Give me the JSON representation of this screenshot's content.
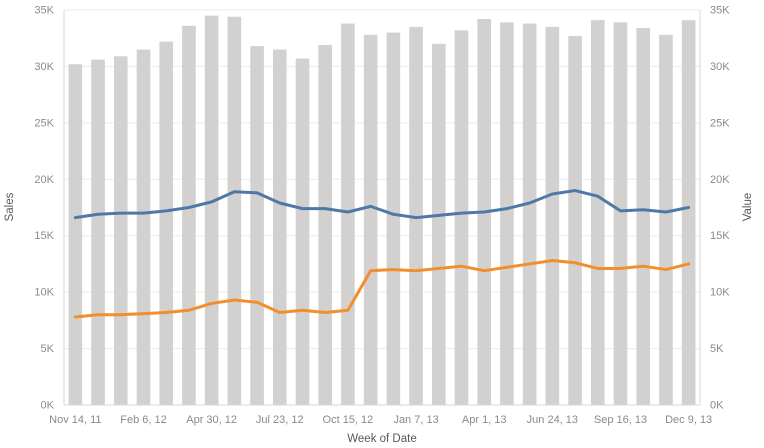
{
  "chart_data": {
    "type": "bar",
    "subtype": "combo-bar-with-lines",
    "title": "",
    "x_axis_title": "Week of Date",
    "left_axis_title": "Sales",
    "right_axis_title": "Value",
    "ylim": [
      0,
      35000
    ],
    "grid": true,
    "legend_position": "none",
    "y_tick_values": [
      0,
      5000,
      10000,
      15000,
      20000,
      25000,
      30000,
      35000
    ],
    "y_tick_labels": [
      "0K",
      "5K",
      "10K",
      "15K",
      "20K",
      "25K",
      "30K",
      "35K"
    ],
    "x_tick_labels": [
      "Nov 14, 11",
      "Feb 6, 12",
      "Apr 30, 12",
      "Jul 23, 12",
      "Oct 15, 12",
      "Jan 7, 13",
      "Apr 1, 13",
      "Jun 24, 13",
      "Sep 16, 13",
      "Dec 9, 13"
    ],
    "x_tick_indices": [
      0,
      3,
      6,
      9,
      12,
      15,
      18,
      21,
      24,
      27
    ],
    "bars": {
      "name": "total-bars",
      "color": "#d2d1d0",
      "values": [
        30200,
        30600,
        30900,
        31500,
        32200,
        33600,
        34500,
        34400,
        31800,
        31500,
        30700,
        31900,
        33800,
        32800,
        33000,
        33500,
        32000,
        33200,
        34200,
        33900,
        33800,
        33500,
        32700,
        34100,
        33900,
        33400,
        32800,
        34100
      ]
    },
    "series": [
      {
        "name": "sales",
        "color": "#4e79a7",
        "values": [
          16600,
          16900,
          17000,
          17000,
          17200,
          17500,
          18000,
          18900,
          18800,
          17900,
          17400,
          17400,
          17100,
          17600,
          16900,
          16600,
          16800,
          17000,
          17100,
          17400,
          17900,
          18700,
          19000,
          18500,
          17200,
          17300,
          17100,
          17500
        ]
      },
      {
        "name": "value",
        "color": "#f28e2b",
        "values": [
          7800,
          8000,
          8000,
          8100,
          8200,
          8400,
          9000,
          9300,
          9100,
          8200,
          8400,
          8200,
          8400,
          11900,
          12000,
          11900,
          12100,
          12300,
          11900,
          12200,
          12500,
          12800,
          12600,
          12100,
          12100,
          12300,
          12000,
          12500
        ]
      }
    ],
    "colors": {
      "bar": "#d2d1d0",
      "sales_line": "#4e79a7",
      "value_line": "#f28e2b",
      "gridline": "#ebebeb",
      "axis_line": "#d7d7d7",
      "tick_text": "#8a8a8a",
      "axis_title_text": "#595959"
    }
  }
}
